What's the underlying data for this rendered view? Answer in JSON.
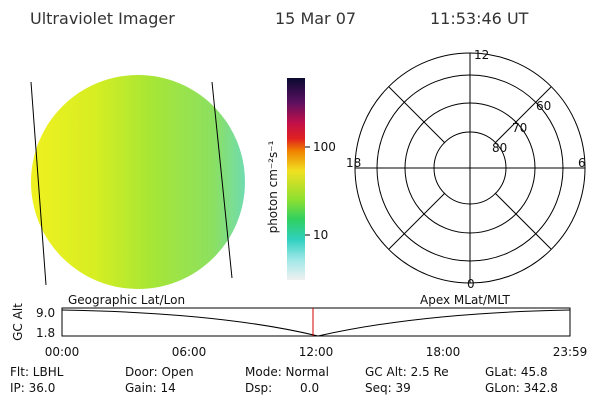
{
  "header": {
    "title": "Ultraviolet Imager",
    "date": "15 Mar 07",
    "time": "11:53:46 UT"
  },
  "colorbar": {
    "label": "photon cm⁻²s⁻¹",
    "ticks": [
      "100",
      "10"
    ]
  },
  "polar": {
    "rings": [
      "80",
      "70",
      "60"
    ],
    "mlt": [
      "12",
      "6",
      "0",
      "18"
    ]
  },
  "altitude_plot": {
    "left_label": "Geographic Lat/Lon",
    "right_label": "Apex MLat/MLT",
    "y_label": "GC Alt",
    "yticks": [
      "9.0",
      "1.8"
    ],
    "xticks": [
      "00:00",
      "06:00",
      "12:00",
      "18:00",
      "23:59"
    ]
  },
  "info": [
    [
      "Flt: LBHL",
      "Door: Open",
      "Mode: Normal",
      "GC Alt: 2.5 Re",
      "GLat: 45.8"
    ],
    [
      "IP: 36.0",
      "Gain: 14",
      "Dsp:",
      "Seq: 39",
      "GLon: 342.8"
    ]
  ],
  "dsp_value": "0.0"
}
